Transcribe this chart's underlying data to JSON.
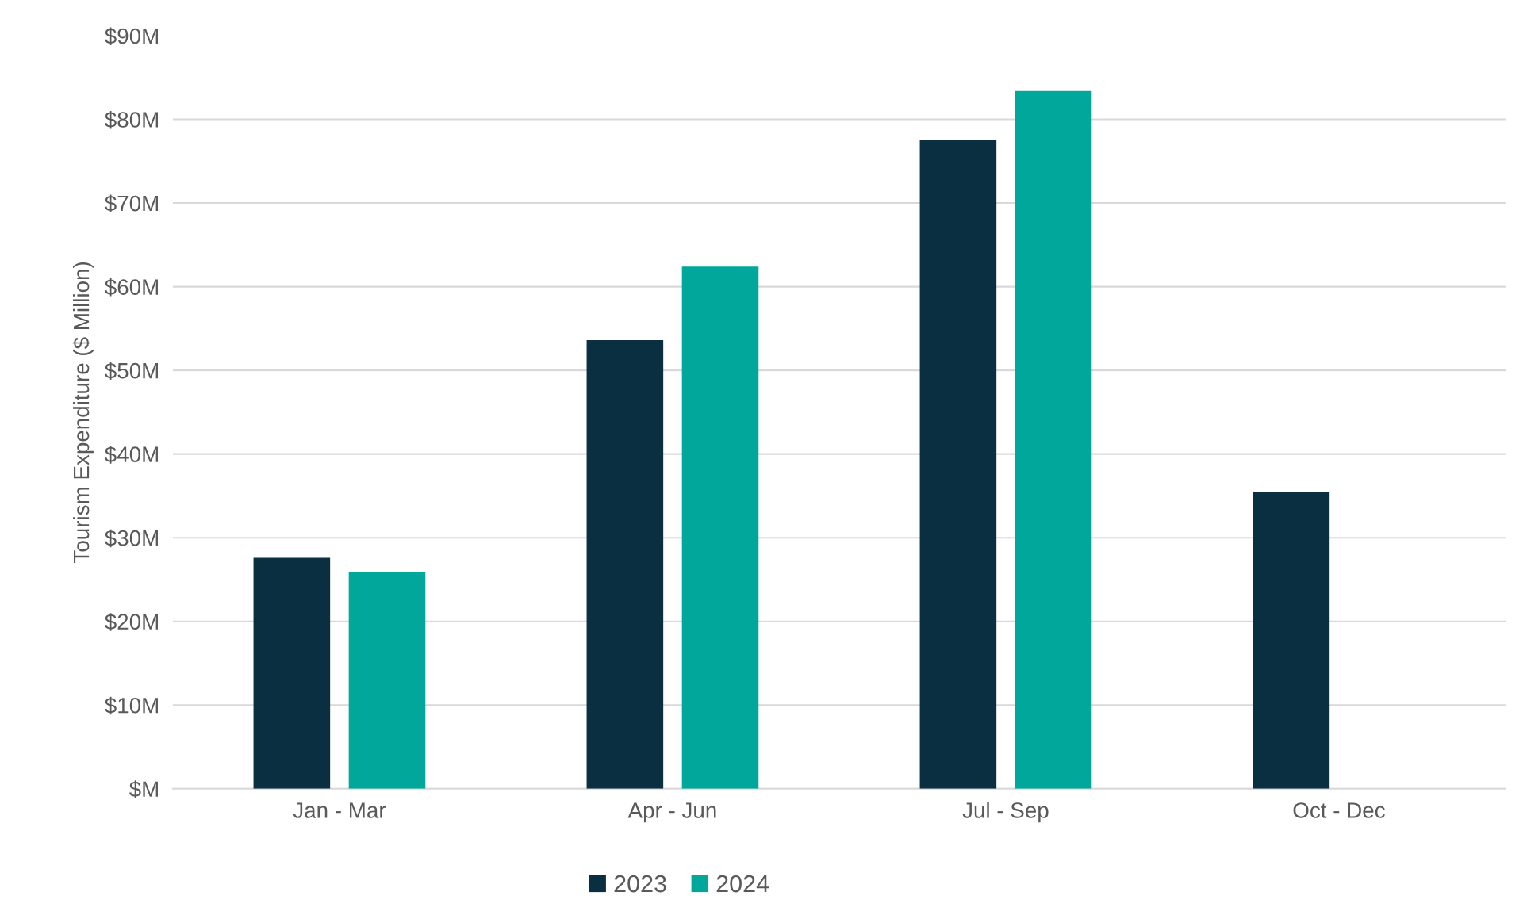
{
  "chart_data": {
    "type": "bar",
    "ylabel": "Tourism Expenditure ($ Million)",
    "categories": [
      "Jan - Mar",
      "Apr - Jun",
      "Jul - Sep",
      "Oct - Dec"
    ],
    "series": [
      {
        "name": "2023",
        "color": "#0a2f40",
        "values": [
          27.6,
          53.6,
          77.5,
          35.5
        ]
      },
      {
        "name": "2024",
        "color": "#00a79a",
        "values": [
          25.9,
          62.4,
          83.4,
          null
        ]
      }
    ],
    "ylim": [
      0,
      90
    ],
    "yticks": [
      {
        "value": 0,
        "label": "$M"
      },
      {
        "value": 10,
        "label": "$10M"
      },
      {
        "value": 20,
        "label": "$20M"
      },
      {
        "value": 30,
        "label": "$30M"
      },
      {
        "value": 40,
        "label": "$40M"
      },
      {
        "value": 50,
        "label": "$50M"
      },
      {
        "value": 60,
        "label": "$60M"
      },
      {
        "value": 70,
        "label": "$70M"
      },
      {
        "value": 80,
        "label": "$80M"
      },
      {
        "value": 90,
        "label": "$90M"
      }
    ],
    "grid": "y",
    "legend": "bottom"
  }
}
